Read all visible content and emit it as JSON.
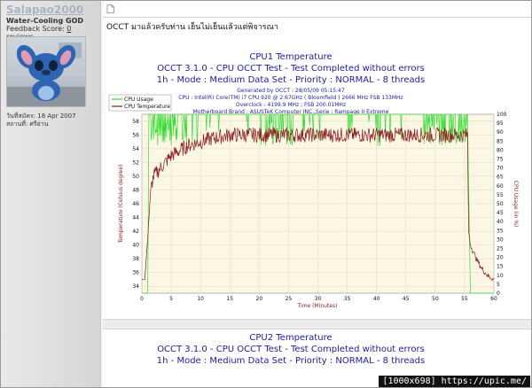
{
  "user": {
    "username": "Salapao2000",
    "title": "Water-Cooling GOD",
    "feedback_label": "Feedback Score:",
    "feedback_count": "0",
    "feedback_suffix": "reviews",
    "join_date": "วันที่สมัคร: 18 Apr 2007",
    "location": "สถานที่: ศรีย่าน"
  },
  "post": {
    "text": "OCCT มาแล้วครับท่าน เย็นไม่เย็นแล้วแต่พิจารณา"
  },
  "graph1": {
    "title": "CPU1 Temperature",
    "line1": "OCCT 3.1.0 - CPU OCCT Test - Test Completed without errors",
    "line2": "1h - Mode : Medium Data Set - Priority : NORMAL - 8 threads",
    "generated": "Generated by OCCT : 28/05/09 05:15:47",
    "cpu": "CPU : Intel(R) Core(TM) i7 CPU 920 @ 2.67GHz ( Bloomfield ) 2666 MHz FSB 133MHz",
    "overclock": "Overclock : 4199.9 MHz ; FSB 200.01MHz",
    "board": "Motherboard Brand : ASUSTeK Computer INC.,Serie : Rampage II Extreme",
    "xlabel": "Time (Minutes)",
    "ylabel_left": "Temperature (Celsius degree)",
    "ylabel_right": "CPU Usage (in %)"
  },
  "graph2": {
    "title": "CPU2 Temperature",
    "line1": "OCCT 3.1.0 - CPU OCCT Test - Test Completed without errors",
    "line2": "1h - Mode : Medium Data Set - Priority : NORMAL - 8 threads"
  },
  "chart_data": {
    "type": "line",
    "xlim": [
      0,
      60
    ],
    "xticks": [
      0,
      5,
      10,
      15,
      20,
      25,
      30,
      35,
      40,
      45,
      50,
      55,
      60
    ],
    "ylim_left": [
      33,
      59
    ],
    "yticks_left": [
      34,
      36,
      38,
      40,
      42,
      44,
      46,
      48,
      50,
      52,
      54,
      56,
      58
    ],
    "ylim_right": [
      0,
      100
    ],
    "yticks_right": [
      0,
      5,
      10,
      15,
      20,
      25,
      30,
      35,
      40,
      45,
      50,
      55,
      60,
      65,
      70,
      75,
      80,
      85,
      90,
      95,
      100
    ],
    "legend_position": "top-left",
    "grid": true,
    "series": [
      {
        "name": "CPU Usage",
        "color": "#33dd33",
        "axis": "right",
        "x": [
          0,
          1,
          1.2,
          5,
          10,
          15,
          20,
          25,
          30,
          35,
          40,
          45,
          50,
          55,
          55.5,
          56,
          60
        ],
        "values": [
          0,
          0,
          100,
          100,
          100,
          100,
          100,
          100,
          100,
          100,
          100,
          100,
          100,
          100,
          100,
          0,
          0
        ]
      },
      {
        "name": "CPU Temperature",
        "color": "#8b1a1a",
        "axis": "left",
        "x": [
          0,
          0.5,
          1,
          1.5,
          2,
          3,
          4,
          5,
          6,
          7,
          8,
          10,
          12,
          15,
          20,
          25,
          30,
          35,
          40,
          45,
          50,
          54,
          55.5,
          55.7,
          56,
          57,
          58,
          59,
          60
        ],
        "values": [
          35,
          35,
          41,
          48,
          50,
          51,
          52,
          53,
          53.5,
          54,
          54.5,
          55,
          55.5,
          56,
          56,
          56,
          56,
          56,
          56,
          56,
          56,
          56,
          56,
          42,
          40,
          38,
          36.5,
          35.5,
          35
        ]
      }
    ]
  }
}
